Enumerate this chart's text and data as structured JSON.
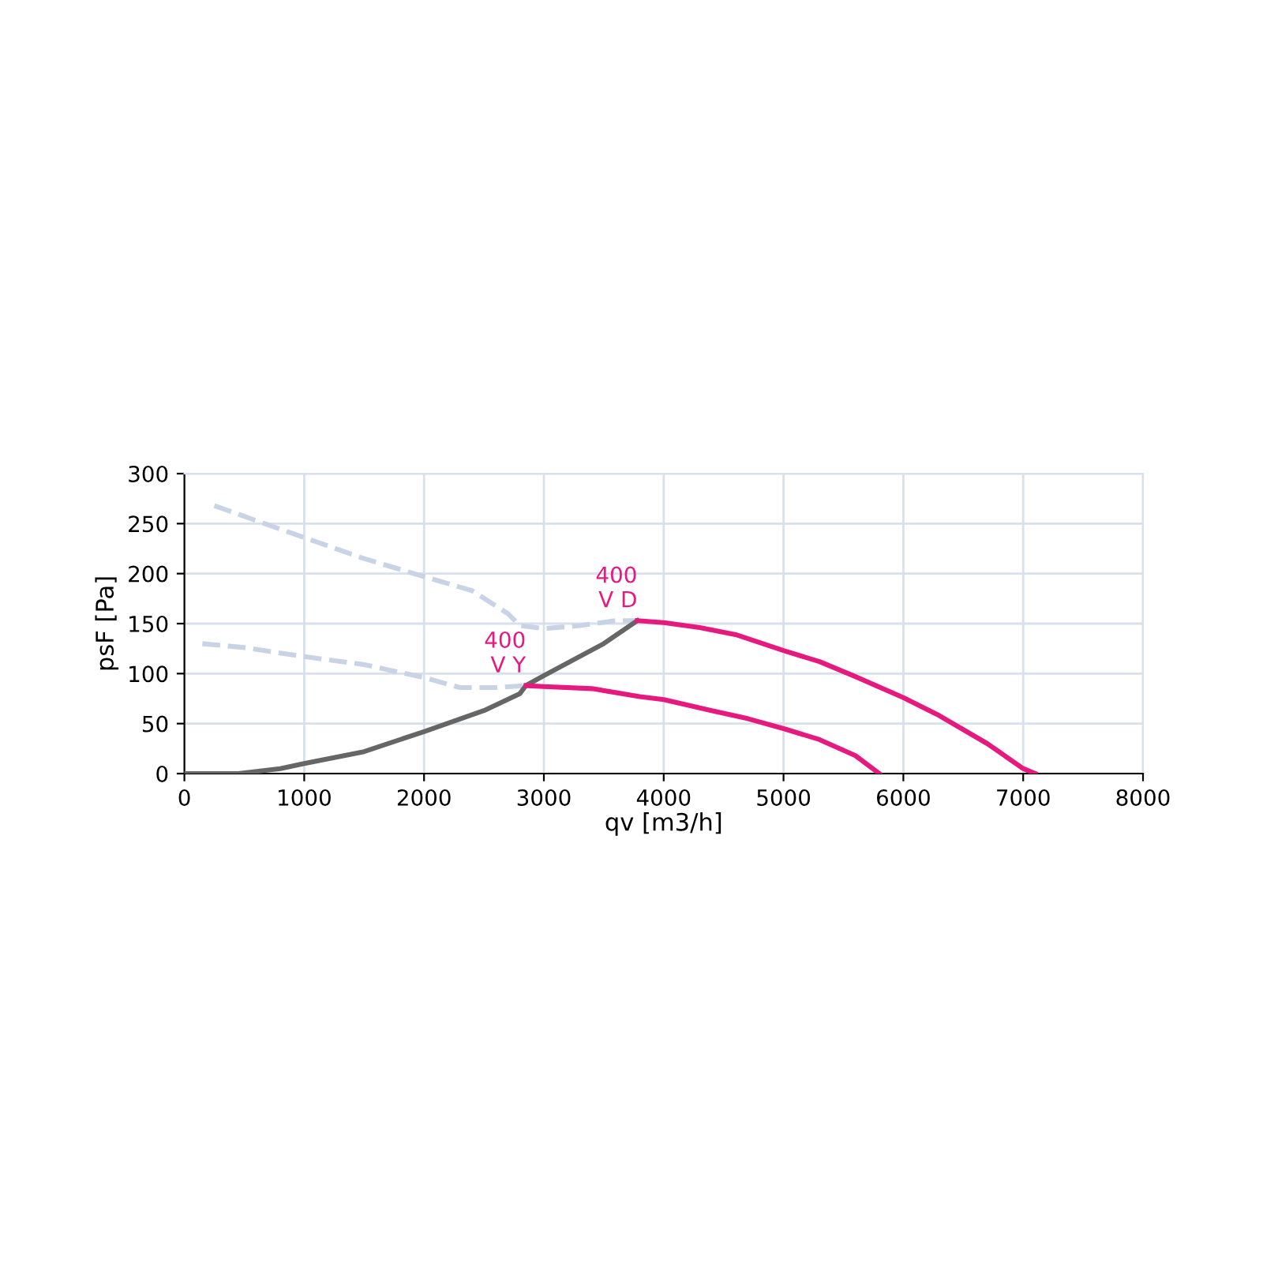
{
  "chart_data": {
    "type": "line",
    "xlabel": "qv [m3/h]",
    "ylabel": "psF [Pa]",
    "xlim": [
      0,
      8000
    ],
    "ylim": [
      0,
      300
    ],
    "xticks": [
      0,
      1000,
      2000,
      3000,
      4000,
      5000,
      6000,
      7000,
      8000
    ],
    "yticks": [
      0,
      50,
      100,
      150,
      200,
      250,
      300
    ],
    "grid": true,
    "legend": false,
    "series": [
      {
        "color": "#c8d4e6",
        "line_style": "dashed",
        "x": [
          250,
          600,
          1000,
          1500,
          2000,
          2400,
          2700,
          2800,
          3000,
          3300,
          3600,
          3780
        ],
        "values": [
          268,
          253,
          236,
          215,
          197,
          183,
          160,
          148,
          145,
          148,
          153,
          153
        ]
      },
      {
        "color": "#c8d4e6",
        "line_style": "dashed",
        "x": [
          150,
          500,
          1000,
          1500,
          2000,
          2300,
          2600,
          2850
        ],
        "values": [
          130,
          126,
          117,
          109,
          96,
          86,
          86,
          88
        ]
      },
      {
        "color": "#666666",
        "line_style": "solid",
        "x": [
          0,
          450,
          800,
          1000,
          1500,
          2000,
          2500,
          2800,
          2850,
          3000,
          3500,
          3780
        ],
        "values": [
          0,
          0,
          5,
          10,
          22,
          42,
          63,
          80,
          88,
          98,
          130,
          153
        ]
      },
      {
        "color": "#e6197f",
        "line_style": "solid",
        "x": [
          3780,
          4000,
          4300,
          4600,
          5000,
          5300,
          5600,
          6000,
          6300,
          6700,
          7000,
          7100
        ],
        "values": [
          153,
          151,
          146,
          139,
          123,
          112,
          97,
          76,
          58,
          30,
          5,
          0
        ]
      },
      {
        "color": "#e6197f",
        "line_style": "solid",
        "x": [
          2850,
          3000,
          3400,
          3800,
          4000,
          4400,
          4700,
          5000,
          5300,
          5600,
          5800
        ],
        "values": [
          88,
          87,
          85,
          77,
          74,
          63,
          55,
          45,
          34,
          18,
          0
        ]
      }
    ],
    "annotations": [
      {
        "text": "400\nV D",
        "x": 3780,
        "y": 153
      },
      {
        "text": "400\nV Y",
        "x": 2850,
        "y": 88
      }
    ]
  }
}
